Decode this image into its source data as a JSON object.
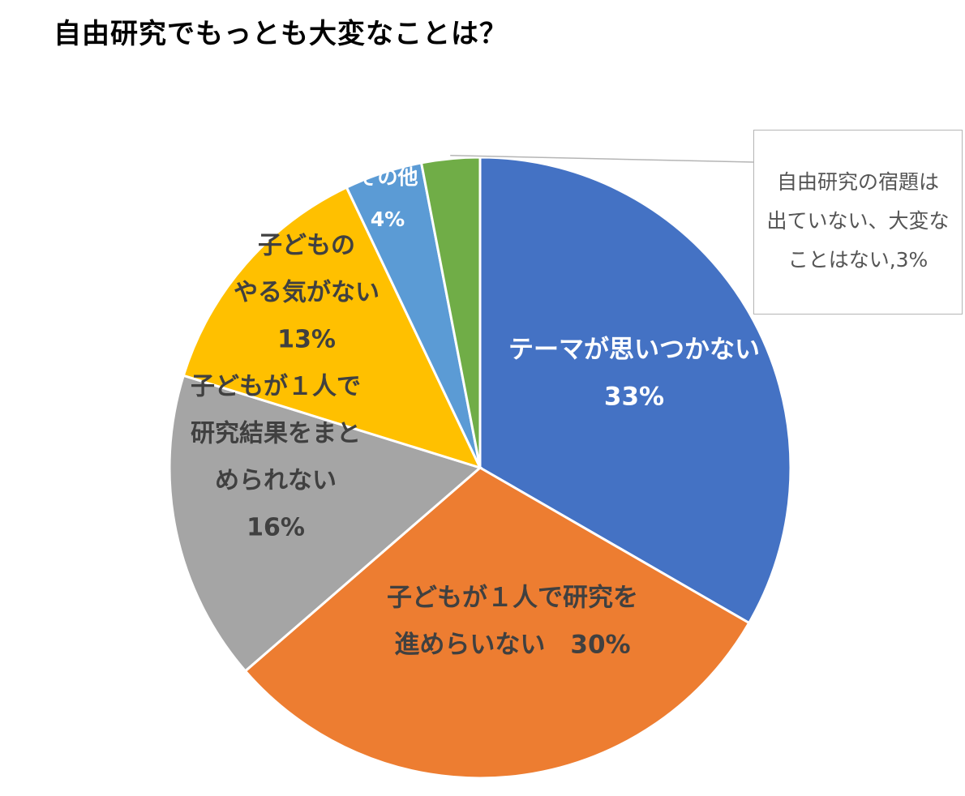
{
  "title": "自由研究でもっとも大変なことは？",
  "chart_data": {
    "type": "pie",
    "title": "自由研究でもっとも大変なことは？",
    "slices": [
      {
        "label_lines": [
          "テーマが思いつかない",
          "33%"
        ],
        "value": 33,
        "color": "#4472c4",
        "text_color": "#ffffff"
      },
      {
        "label_lines": [
          "子どもが１人で研究を",
          "進めらいない　30%"
        ],
        "value": 30,
        "color": "#ed7d31",
        "text_color": "#404040"
      },
      {
        "label_lines": [
          "子どもが１人で",
          "研究結果をまと",
          "められない",
          "16%"
        ],
        "value": 16,
        "color": "#a5a5a5",
        "text_color": "#404040"
      },
      {
        "label_lines": [
          "子どもの",
          "やる気がない",
          "13%"
        ],
        "value": 13,
        "color": "#ffc000",
        "text_color": "#404040"
      },
      {
        "label_lines": [
          "その他",
          "4%"
        ],
        "value": 4,
        "color": "#5b9bd5",
        "text_color": "#ffffff"
      },
      {
        "label_lines": [],
        "value": 3,
        "color": "#70ad47",
        "text_color": "#404040"
      }
    ],
    "callout": {
      "lines": [
        "自由研究の宿題は",
        "出ていない、大変な",
        "ことはない,3%"
      ]
    }
  }
}
